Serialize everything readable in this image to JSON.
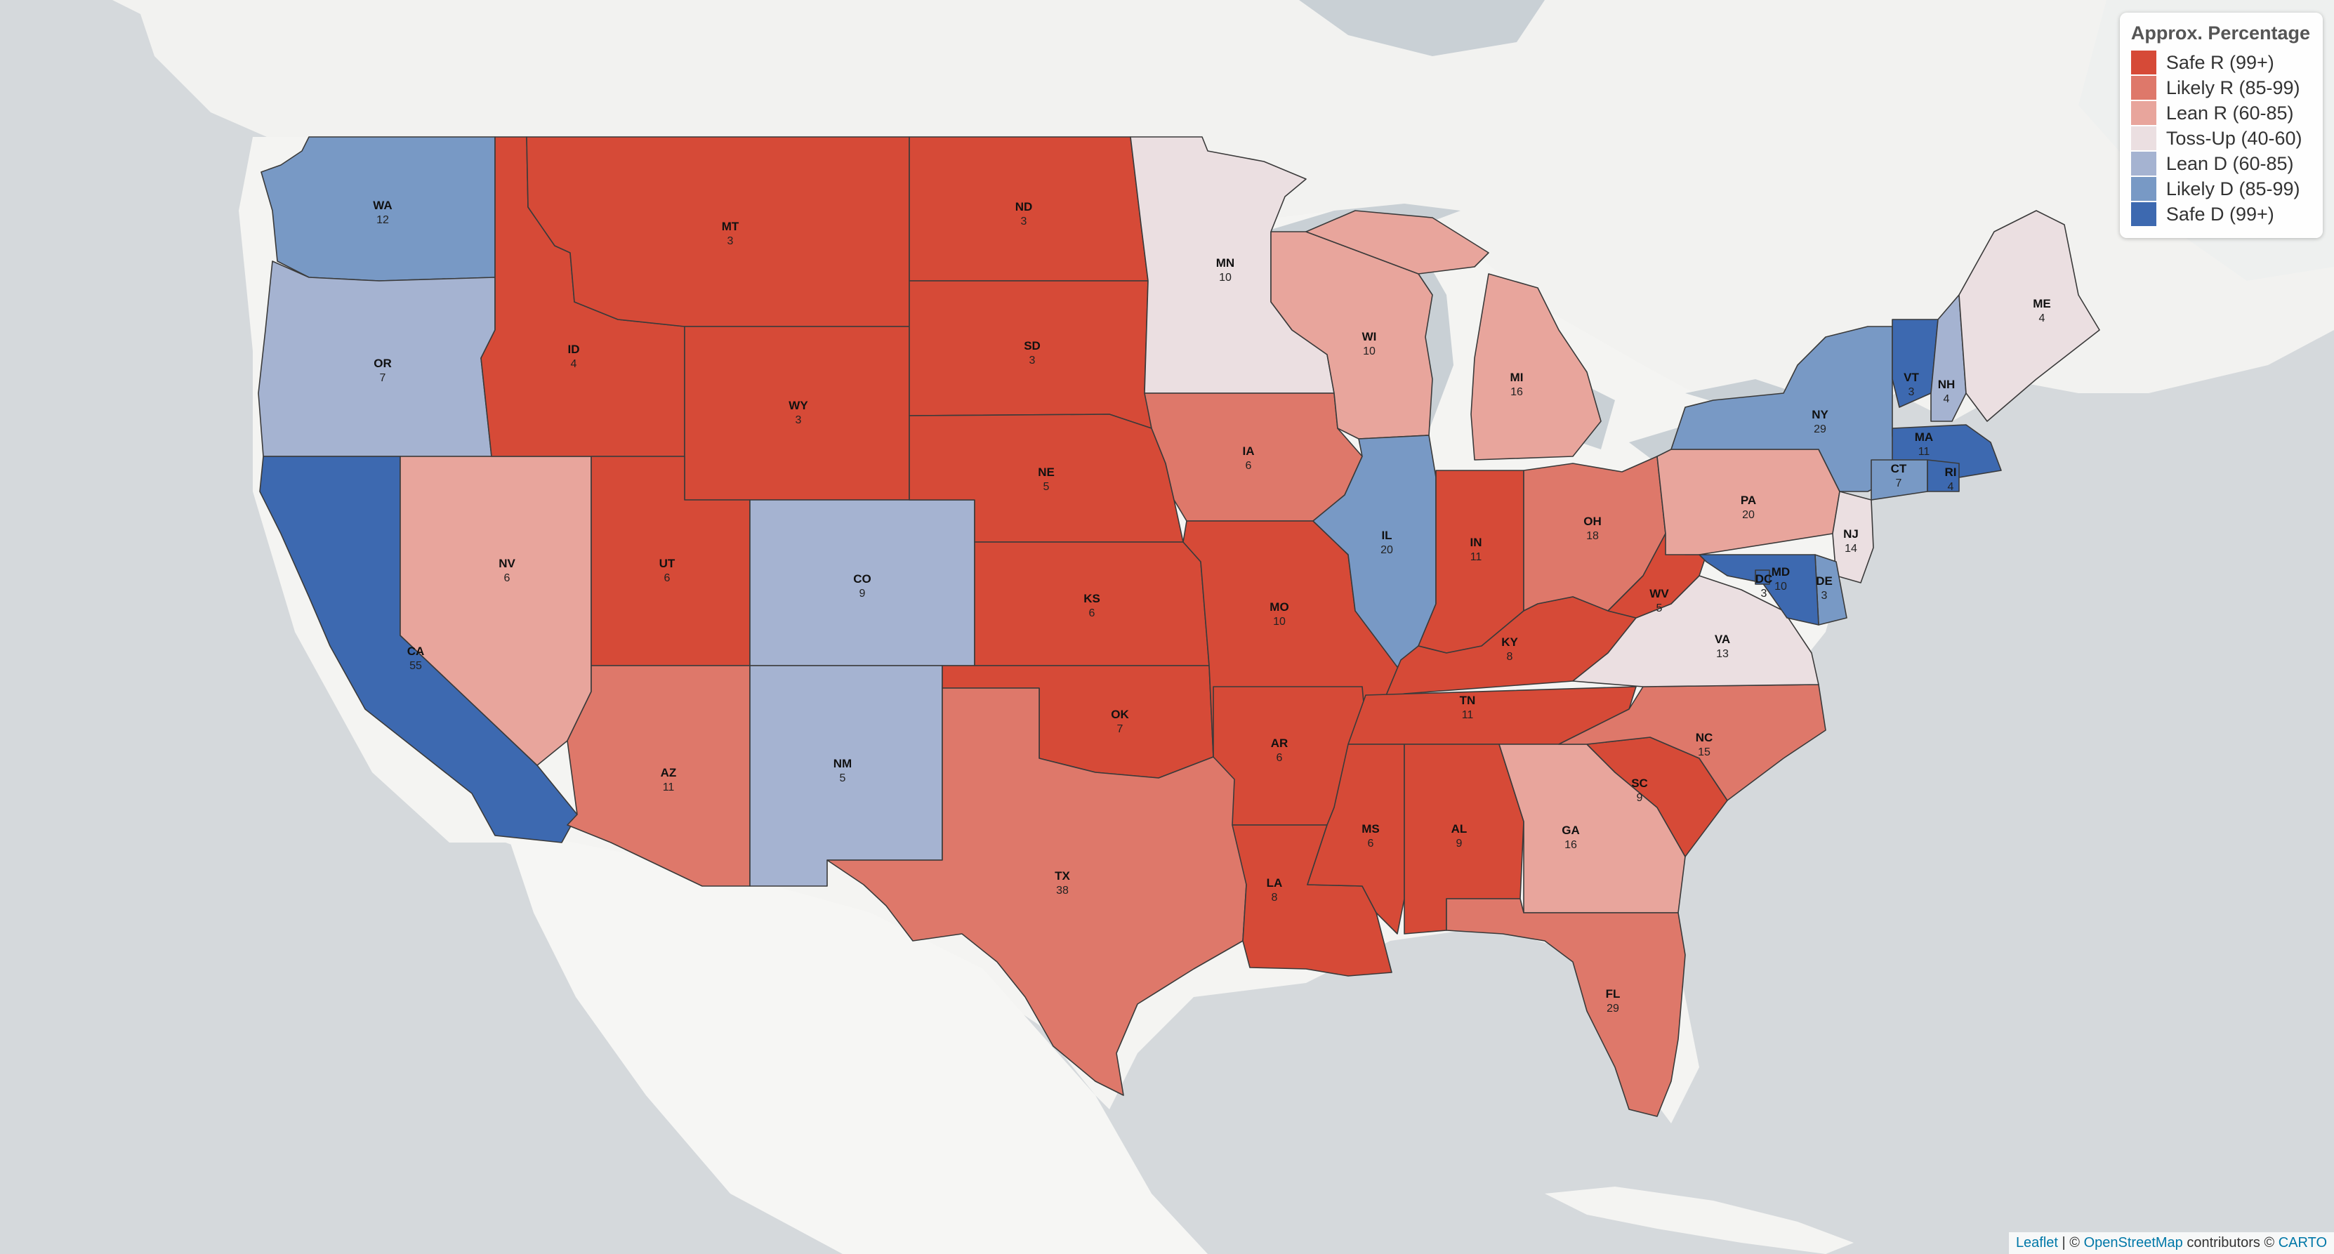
{
  "legend": {
    "title": "Approx. Percentage",
    "items": [
      {
        "label": "Safe R (99+)",
        "color": "#d64a37"
      },
      {
        "label": "Likely R (85-99)",
        "color": "#de786a"
      },
      {
        "label": "Lean R (60-85)",
        "color": "#e8a59c"
      },
      {
        "label": "Toss-Up (40-60)",
        "color": "#ebdfe1"
      },
      {
        "label": "Lean D (60-85)",
        "color": "#a5b3d1"
      },
      {
        "label": "Likely D (85-99)",
        "color": "#7899c5"
      },
      {
        "label": "Safe D (99+)",
        "color": "#3d69b0"
      }
    ]
  },
  "attribution": {
    "leaflet": "Leaflet",
    "separator": " | © ",
    "osm": "OpenStreetMap",
    "contributors": " contributors © ",
    "carto": "CARTO"
  },
  "states": [
    {
      "abbr": "WA",
      "ev": "12",
      "rating": "Likely D (85-99)"
    },
    {
      "abbr": "OR",
      "ev": "7",
      "rating": "Lean D (60-85)"
    },
    {
      "abbr": "CA",
      "ev": "55",
      "rating": "Safe D (99+)"
    },
    {
      "abbr": "NV",
      "ev": "6",
      "rating": "Lean R (60-85)"
    },
    {
      "abbr": "ID",
      "ev": "4",
      "rating": "Safe R (99+)"
    },
    {
      "abbr": "MT",
      "ev": "3",
      "rating": "Safe R (99+)"
    },
    {
      "abbr": "WY",
      "ev": "3",
      "rating": "Safe R (99+)"
    },
    {
      "abbr": "UT",
      "ev": "6",
      "rating": "Safe R (99+)"
    },
    {
      "abbr": "AZ",
      "ev": "11",
      "rating": "Likely R (85-99)"
    },
    {
      "abbr": "CO",
      "ev": "9",
      "rating": "Lean D (60-85)"
    },
    {
      "abbr": "NM",
      "ev": "5",
      "rating": "Lean D (60-85)"
    },
    {
      "abbr": "ND",
      "ev": "3",
      "rating": "Safe R (99+)"
    },
    {
      "abbr": "SD",
      "ev": "3",
      "rating": "Safe R (99+)"
    },
    {
      "abbr": "NE",
      "ev": "5",
      "rating": "Safe R (99+)"
    },
    {
      "abbr": "KS",
      "ev": "6",
      "rating": "Safe R (99+)"
    },
    {
      "abbr": "OK",
      "ev": "7",
      "rating": "Safe R (99+)"
    },
    {
      "abbr": "TX",
      "ev": "38",
      "rating": "Likely R (85-99)"
    },
    {
      "abbr": "MN",
      "ev": "10",
      "rating": "Toss-Up (40-60)"
    },
    {
      "abbr": "IA",
      "ev": "6",
      "rating": "Likely R (85-99)"
    },
    {
      "abbr": "MO",
      "ev": "10",
      "rating": "Safe R (99+)"
    },
    {
      "abbr": "AR",
      "ev": "6",
      "rating": "Safe R (99+)"
    },
    {
      "abbr": "LA",
      "ev": "8",
      "rating": "Safe R (99+)"
    },
    {
      "abbr": "WI",
      "ev": "10",
      "rating": "Lean R (60-85)"
    },
    {
      "abbr": "IL",
      "ev": "20",
      "rating": "Likely D (85-99)"
    },
    {
      "abbr": "MI",
      "ev": "16",
      "rating": "Lean R (60-85)"
    },
    {
      "abbr": "IN",
      "ev": "11",
      "rating": "Safe R (99+)"
    },
    {
      "abbr": "OH",
      "ev": "18",
      "rating": "Likely R (85-99)"
    },
    {
      "abbr": "KY",
      "ev": "8",
      "rating": "Safe R (99+)"
    },
    {
      "abbr": "TN",
      "ev": "11",
      "rating": "Safe R (99+)"
    },
    {
      "abbr": "MS",
      "ev": "6",
      "rating": "Safe R (99+)"
    },
    {
      "abbr": "AL",
      "ev": "9",
      "rating": "Safe R (99+)"
    },
    {
      "abbr": "GA",
      "ev": "16",
      "rating": "Lean R (60-85)"
    },
    {
      "abbr": "FL",
      "ev": "29",
      "rating": "Likely R (85-99)"
    },
    {
      "abbr": "SC",
      "ev": "9",
      "rating": "Safe R (99+)"
    },
    {
      "abbr": "NC",
      "ev": "15",
      "rating": "Likely R (85-99)"
    },
    {
      "abbr": "VA",
      "ev": "13",
      "rating": "Toss-Up (40-60)"
    },
    {
      "abbr": "WV",
      "ev": "5",
      "rating": "Safe R (99+)"
    },
    {
      "abbr": "PA",
      "ev": "20",
      "rating": "Lean R (60-85)"
    },
    {
      "abbr": "NY",
      "ev": "29",
      "rating": "Likely D (85-99)"
    },
    {
      "abbr": "VT",
      "ev": "3",
      "rating": "Safe D (99+)"
    },
    {
      "abbr": "NH",
      "ev": "4",
      "rating": "Lean D (60-85)"
    },
    {
      "abbr": "ME",
      "ev": "4",
      "rating": "Toss-Up (40-60)"
    },
    {
      "abbr": "MA",
      "ev": "11",
      "rating": "Safe D (99+)"
    },
    {
      "abbr": "CT",
      "ev": "7",
      "rating": "Likely D (85-99)"
    },
    {
      "abbr": "RI",
      "ev": "4",
      "rating": "Safe D (99+)"
    },
    {
      "abbr": "NJ",
      "ev": "14",
      "rating": "Toss-Up (40-60)"
    },
    {
      "abbr": "DE",
      "ev": "3",
      "rating": "Likely D (85-99)"
    },
    {
      "abbr": "MD",
      "ev": "10",
      "rating": "Safe D (99+)"
    },
    {
      "abbr": "DC",
      "ev": "3",
      "rating": "Safe D (99+)"
    }
  ]
}
